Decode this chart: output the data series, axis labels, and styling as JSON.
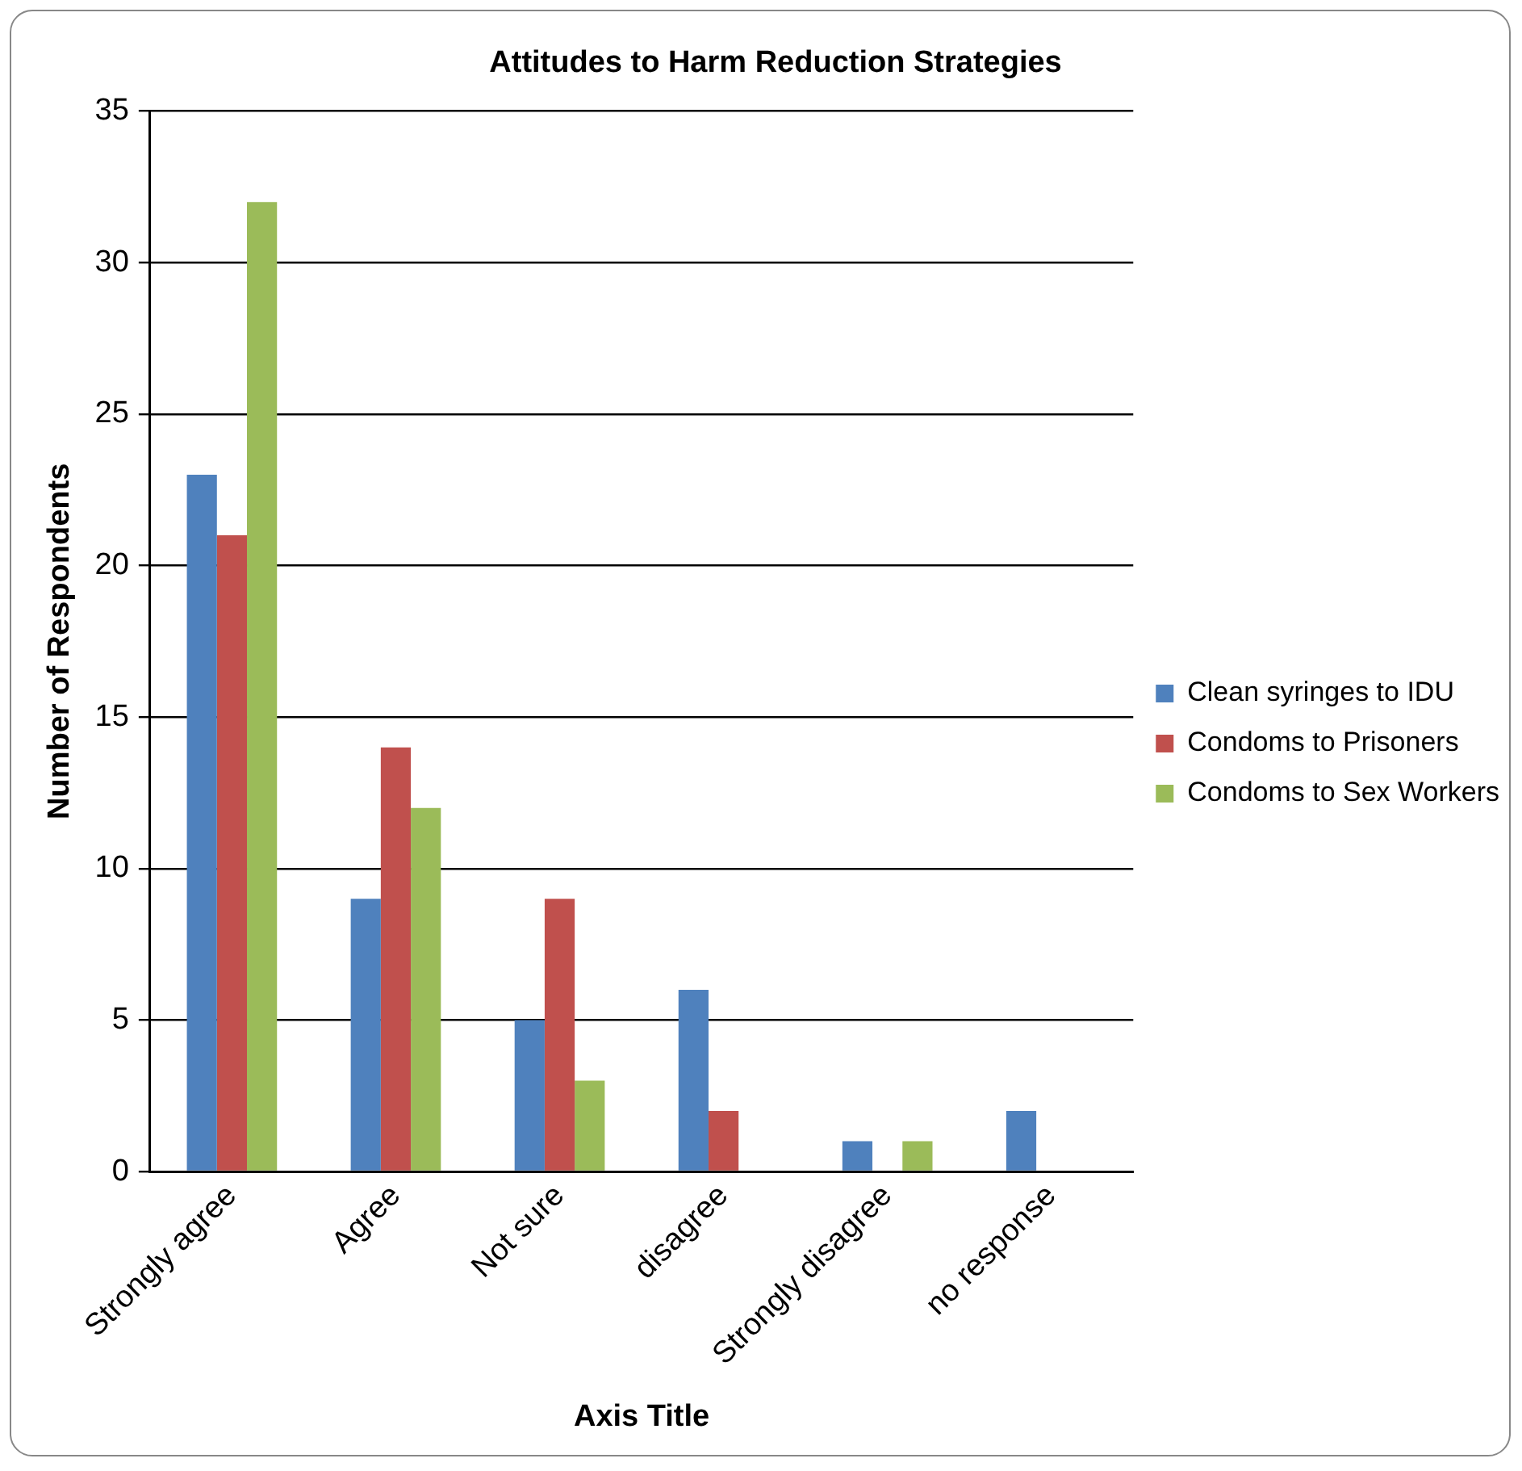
{
  "chart_data": {
    "type": "bar",
    "title": "Attitudes to Harm Reduction Strategies",
    "xlabel": "Axis Title",
    "ylabel": "Number of Respondents",
    "categories": [
      "Strongly agree",
      "Agree",
      "Not sure",
      "disagree",
      "Strongly disagree",
      "no response"
    ],
    "series": [
      {
        "name": "Clean syringes to IDU",
        "color": "#4f81bd",
        "values": [
          23,
          9,
          5,
          6,
          1,
          2
        ]
      },
      {
        "name": "Condoms to Prisoners",
        "color": "#c0504d",
        "values": [
          21,
          14,
          9,
          2,
          0,
          0
        ]
      },
      {
        "name": "Condoms to Sex Workers",
        "color": "#9bbb59",
        "values": [
          32,
          12,
          3,
          0,
          1,
          0
        ]
      }
    ],
    "ylim": [
      0,
      35
    ],
    "yticks": [
      0,
      5,
      10,
      15,
      20,
      25,
      30,
      35
    ],
    "grid": "y",
    "legend": "right"
  }
}
